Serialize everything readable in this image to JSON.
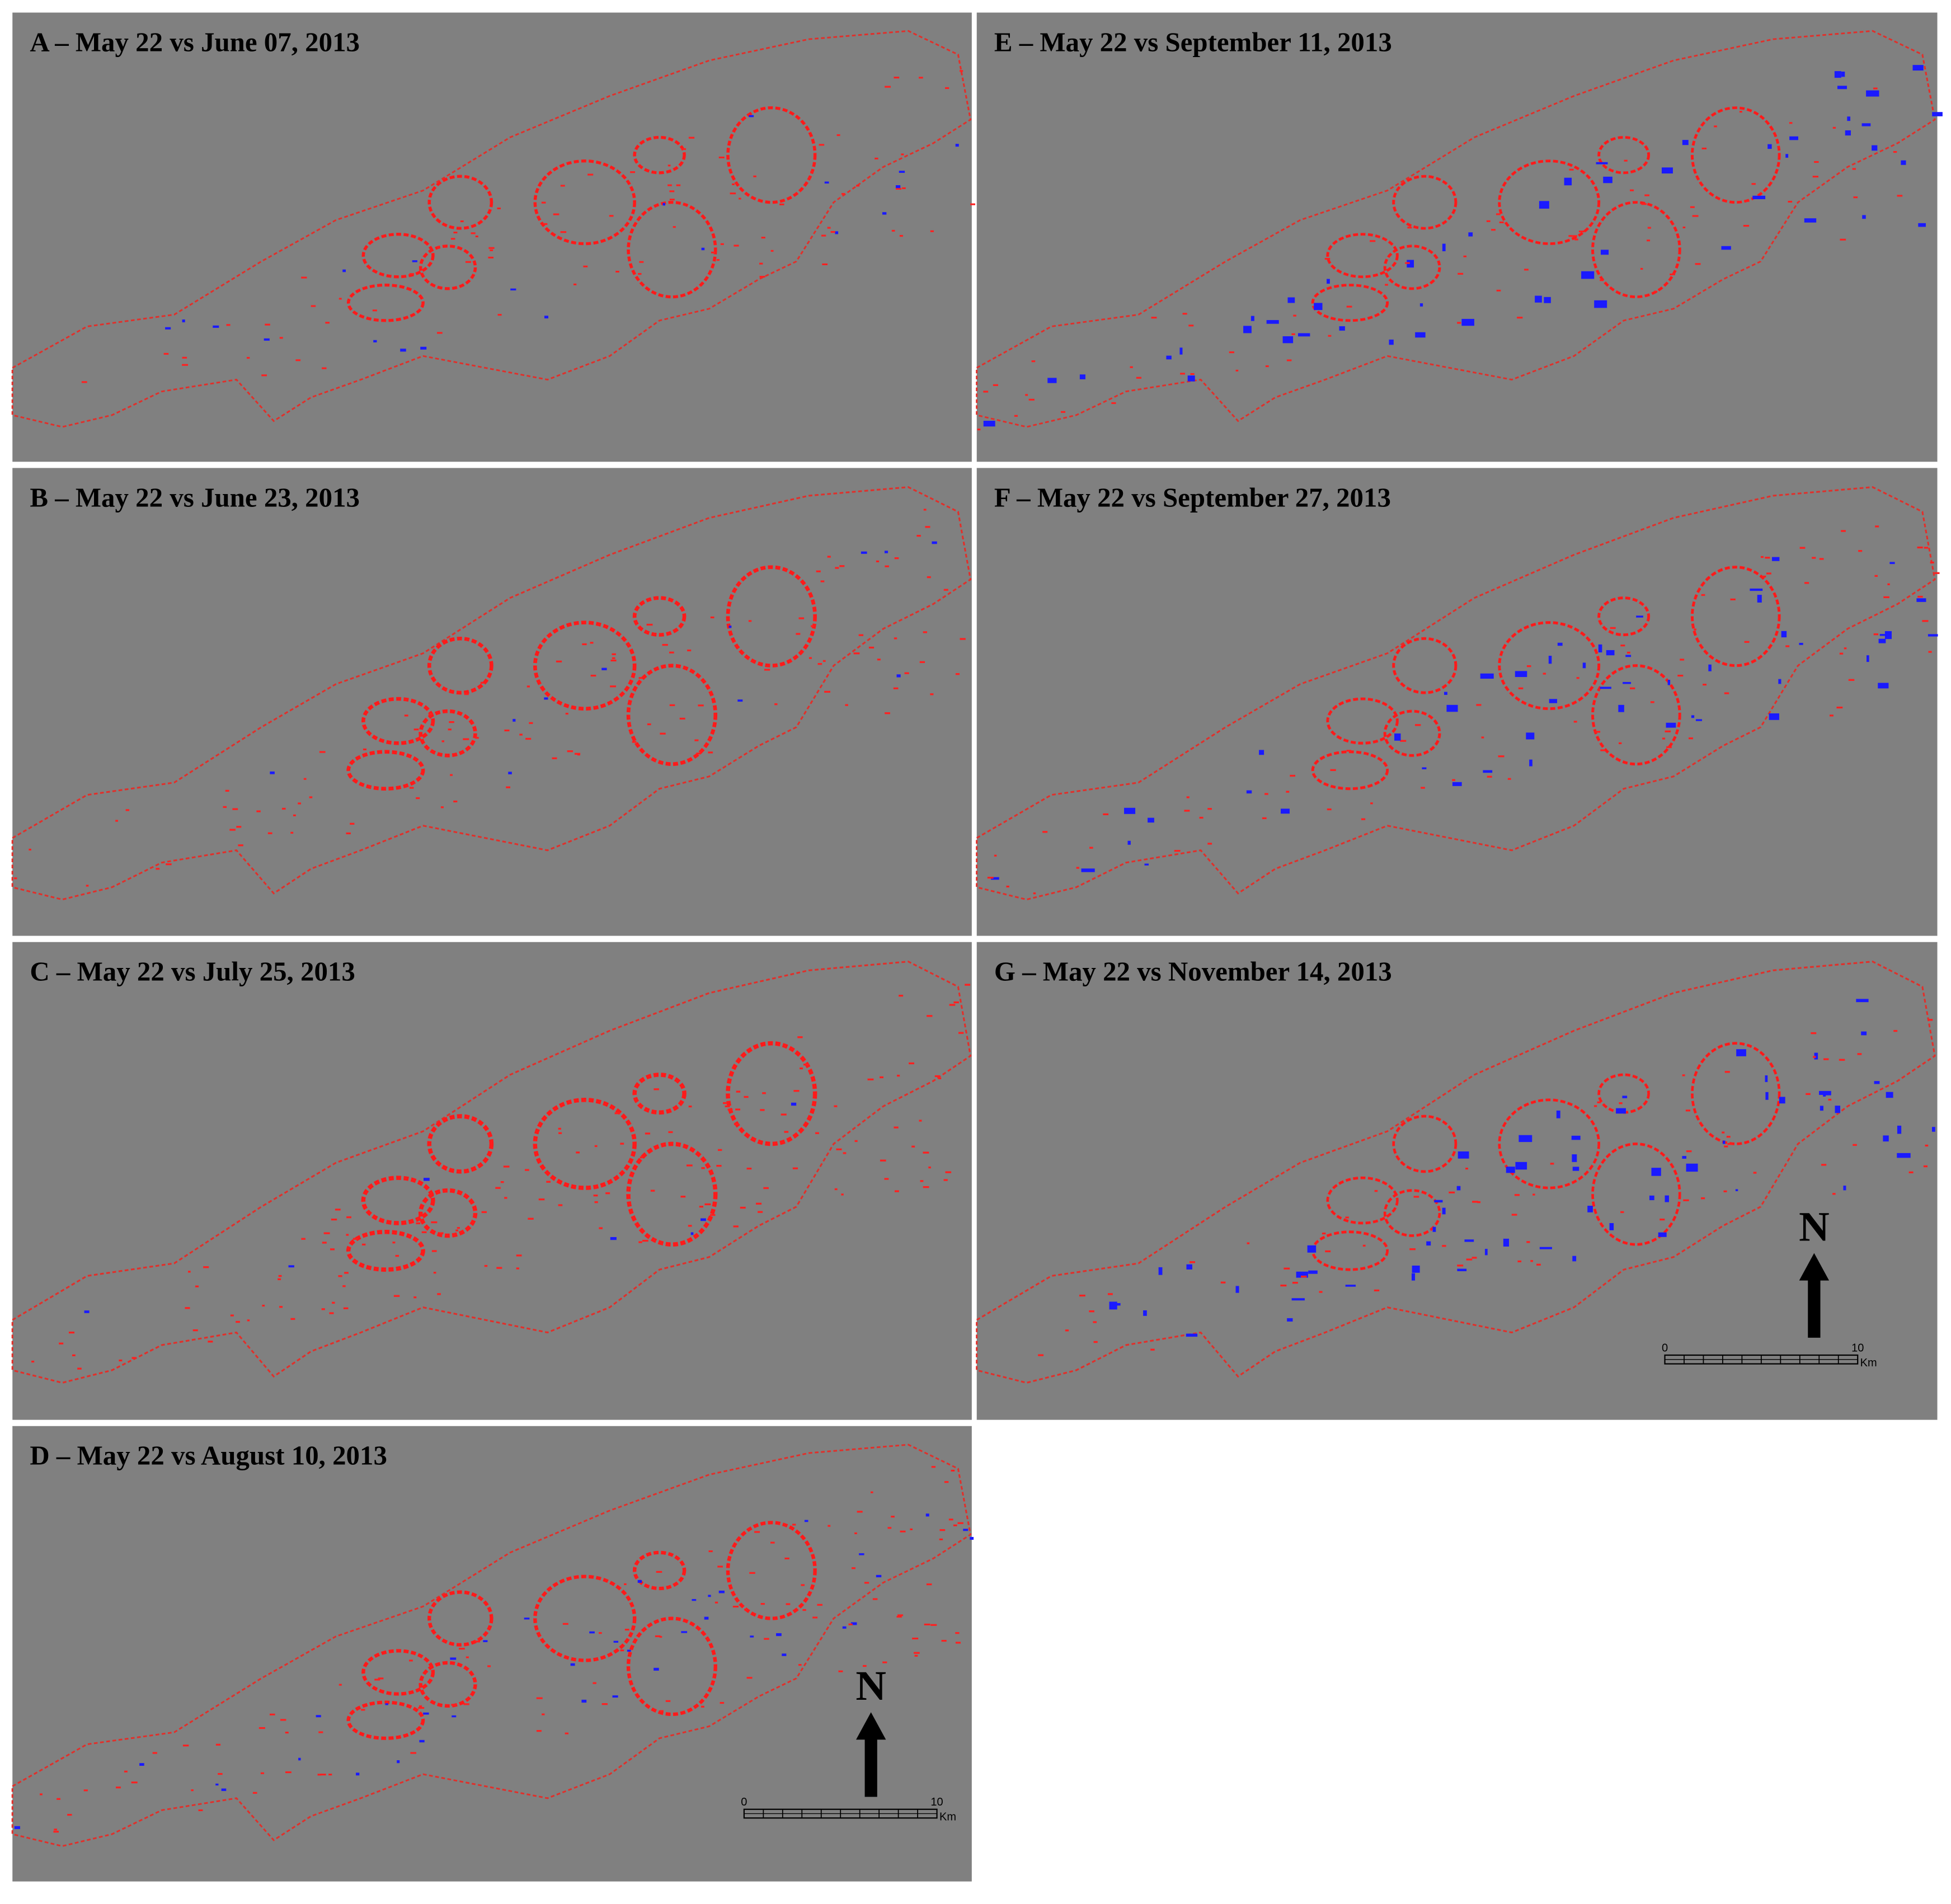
{
  "panels": [
    {
      "id": "A",
      "title": "A – May 22 vs June 07, 2013"
    },
    {
      "id": "B",
      "title": "B – May 22 vs June 23, 2013"
    },
    {
      "id": "C",
      "title": "C – May 22 vs July 25, 2013"
    },
    {
      "id": "D",
      "title": "D – May 22 vs August 10, 2013"
    },
    {
      "id": "E",
      "title": "E – May 22 vs September 11, 2013"
    },
    {
      "id": "F",
      "title": "F – May 22 vs September 27, 2013"
    },
    {
      "id": "G",
      "title": "G – May 22 vs November 14, 2013"
    }
  ],
  "north_label": "N",
  "scale_bar": {
    "start": "0",
    "end": "10",
    "unit": "Km"
  }
}
